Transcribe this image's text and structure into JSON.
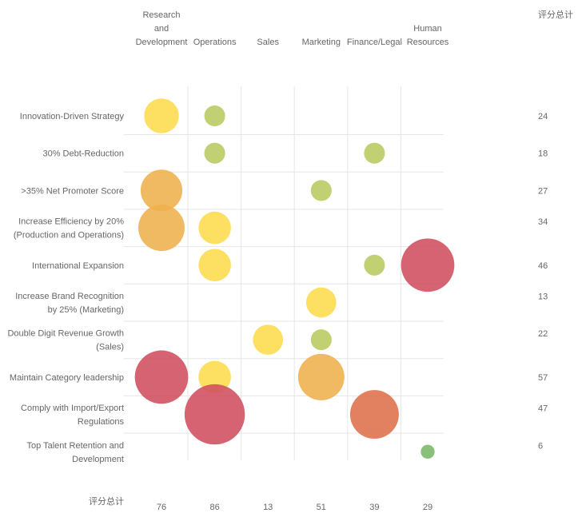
{
  "chart_data": {
    "type": "bubble-matrix",
    "columns": [
      [
        "Research",
        "and",
        "Development"
      ],
      [
        "Operations"
      ],
      [
        "Sales"
      ],
      [
        "Marketing"
      ],
      [
        "Finance/Legal"
      ],
      [
        "Human",
        "Resources"
      ]
    ],
    "rows": [
      [
        "Innovation-Driven Strategy"
      ],
      [
        "30% Debt-Reduction"
      ],
      [
        ">35% Net Promoter Score"
      ],
      [
        "Increase Efficiency by 20%",
        "(Production and Operations)"
      ],
      [
        "International Expansion"
      ],
      [
        "Increase Brand Recognition",
        "by 25% (Marketing)"
      ],
      [
        "Double Digit Revenue Growth",
        "(Sales)"
      ],
      [
        "Maintain Category leadership"
      ],
      [
        "Comply with Import/Export",
        "Regulations"
      ],
      [
        "Top Talent Retention and",
        "Development"
      ]
    ],
    "total_label": "评分总计",
    "row_totals": [
      24,
      18,
      27,
      34,
      46,
      13,
      22,
      57,
      47,
      6
    ],
    "column_totals": [
      76,
      86,
      13,
      51,
      39,
      29
    ],
    "points": [
      {
        "row": 0,
        "col": 0,
        "value": 15,
        "color": "#fddc4b"
      },
      {
        "row": 0,
        "col": 1,
        "value": 9,
        "color": "#b7c95f"
      },
      {
        "row": 1,
        "col": 1,
        "value": 9,
        "color": "#b7c95f"
      },
      {
        "row": 1,
        "col": 4,
        "value": 9,
        "color": "#b7c95f"
      },
      {
        "row": 2,
        "col": 0,
        "value": 18,
        "color": "#eeb04c"
      },
      {
        "row": 2,
        "col": 3,
        "value": 9,
        "color": "#b7c95f"
      },
      {
        "row": 3,
        "col": 0,
        "value": 20,
        "color": "#eeb04c"
      },
      {
        "row": 3,
        "col": 1,
        "value": 14,
        "color": "#fddc4b"
      },
      {
        "row": 4,
        "col": 1,
        "value": 14,
        "color": "#fddc4b"
      },
      {
        "row": 4,
        "col": 4,
        "value": 9,
        "color": "#b7c95f"
      },
      {
        "row": 4,
        "col": 5,
        "value": 23,
        "color": "#cf4d5e"
      },
      {
        "row": 5,
        "col": 3,
        "value": 13,
        "color": "#fddc4b"
      },
      {
        "row": 6,
        "col": 2,
        "value": 13,
        "color": "#fddc4b"
      },
      {
        "row": 6,
        "col": 3,
        "value": 9,
        "color": "#b7c95f"
      },
      {
        "row": 7,
        "col": 0,
        "value": 23,
        "color": "#cf4d5e"
      },
      {
        "row": 7,
        "col": 1,
        "value": 14,
        "color": "#fddc4b"
      },
      {
        "row": 7,
        "col": 3,
        "value": 20,
        "color": "#eeb04c"
      },
      {
        "row": 8,
        "col": 1,
        "value": 26,
        "color": "#cf4d5e"
      },
      {
        "row": 8,
        "col": 4,
        "value": 21,
        "color": "#de7049"
      },
      {
        "row": 9,
        "col": 5,
        "value": 6,
        "color": "#7ab765"
      }
    ]
  }
}
